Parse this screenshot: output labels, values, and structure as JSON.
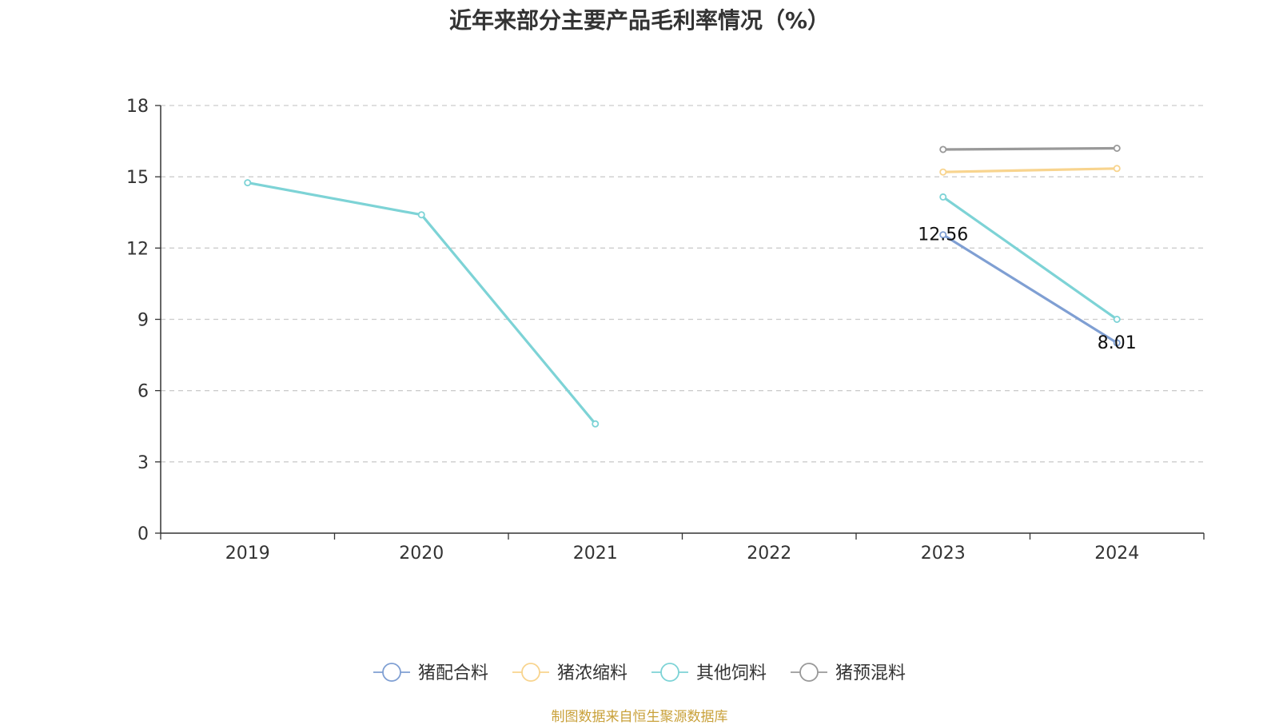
{
  "chart_data": {
    "type": "line",
    "title": "近年来部分主要产品毛利率情况（%）",
    "xlabel": "",
    "ylabel": "",
    "categories": [
      "2019",
      "2020",
      "2021",
      "2022",
      "2023",
      "2024"
    ],
    "ylim": [
      0,
      18
    ],
    "yticks": [
      0,
      3,
      6,
      9,
      12,
      15,
      18
    ],
    "grid": true,
    "legend_position": "bottom",
    "series": [
      {
        "name": "猪配合料",
        "color": "#7f9fd3",
        "values": [
          null,
          null,
          null,
          null,
          12.56,
          8.01
        ],
        "data_labels": [
          "",
          "",
          "",
          "",
          "12.56",
          "8.01"
        ]
      },
      {
        "name": "猪浓缩料",
        "color": "#f8d48e",
        "values": [
          null,
          null,
          null,
          null,
          15.2,
          15.35
        ]
      },
      {
        "name": "其他饲料",
        "color": "#7dd3d6",
        "values": [
          14.75,
          13.4,
          4.6,
          null,
          14.15,
          9.0
        ]
      },
      {
        "name": "猪预混料",
        "color": "#999999",
        "values": [
          null,
          null,
          null,
          null,
          16.15,
          16.2
        ]
      }
    ]
  },
  "source": "制图数据来自恒生聚源数据库"
}
